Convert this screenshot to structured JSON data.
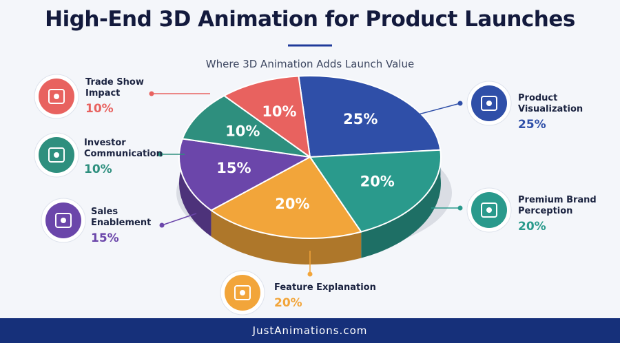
{
  "chart_data": {
    "type": "pie",
    "title": "High-End 3D Animation for Product Launches",
    "subtitle": "Where 3D Animation Adds Launch Value",
    "footer": "JustAnimations.com",
    "categories": [
      "Product Visualization",
      "Premium Brand Perception",
      "Feature Explanation",
      "Sales Enablement",
      "Investor Communication",
      "Trade Show Impact"
    ],
    "values": [
      25,
      20,
      20,
      15,
      10,
      10
    ],
    "value_labels": [
      "25%",
      "20%",
      "20%",
      "15%",
      "10%",
      "10%"
    ],
    "colors": [
      "#2f4fa8",
      "#2a9a8c",
      "#f2a53a",
      "#6b46aa",
      "#2e8f7e",
      "#e8625f"
    ]
  }
}
